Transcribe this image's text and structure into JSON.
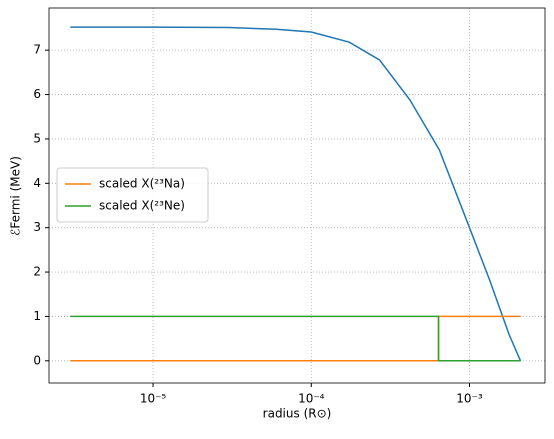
{
  "chart_data": {
    "type": "line",
    "xlabel": "radius (R⊙)",
    "ylabel": "ℰFermi (MeV)",
    "xscale": "log",
    "xlim": [
      2.2e-06,
      0.003
    ],
    "ylim": [
      -0.5,
      7.95
    ],
    "xticks": [
      {
        "value": 1e-05,
        "label": "10⁻⁵"
      },
      {
        "value": 0.0001,
        "label": "10⁻⁴"
      },
      {
        "value": 0.001,
        "label": "10⁻³"
      }
    ],
    "yticks": [
      0,
      1,
      2,
      3,
      4,
      5,
      6,
      7
    ],
    "grid": true,
    "legend": "center left",
    "series": [
      {
        "color": "#1f77b4",
        "x": [
          3e-06,
          1e-05,
          3e-05,
          6e-05,
          0.0001,
          0.000174,
          0.00027,
          0.00042,
          0.000645,
          0.001,
          0.00134,
          0.00178,
          0.0021
        ],
        "values": [
          7.52,
          7.52,
          7.51,
          7.47,
          7.41,
          7.18,
          6.78,
          5.88,
          4.75,
          3.0,
          1.82,
          0.59,
          0.0
        ]
      },
      {
        "name": "scaled X(²³Na)",
        "color": "#ff7f0e",
        "x": [
          3e-06,
          0.000637,
          0.000637,
          0.0021
        ],
        "values": [
          0,
          0,
          1,
          1
        ]
      },
      {
        "name": "scaled X(²³Ne)",
        "color": "#2ca02c",
        "x": [
          3e-06,
          0.000637,
          0.000637,
          0.0021
        ],
        "values": [
          1,
          1,
          0,
          0
        ]
      }
    ]
  }
}
